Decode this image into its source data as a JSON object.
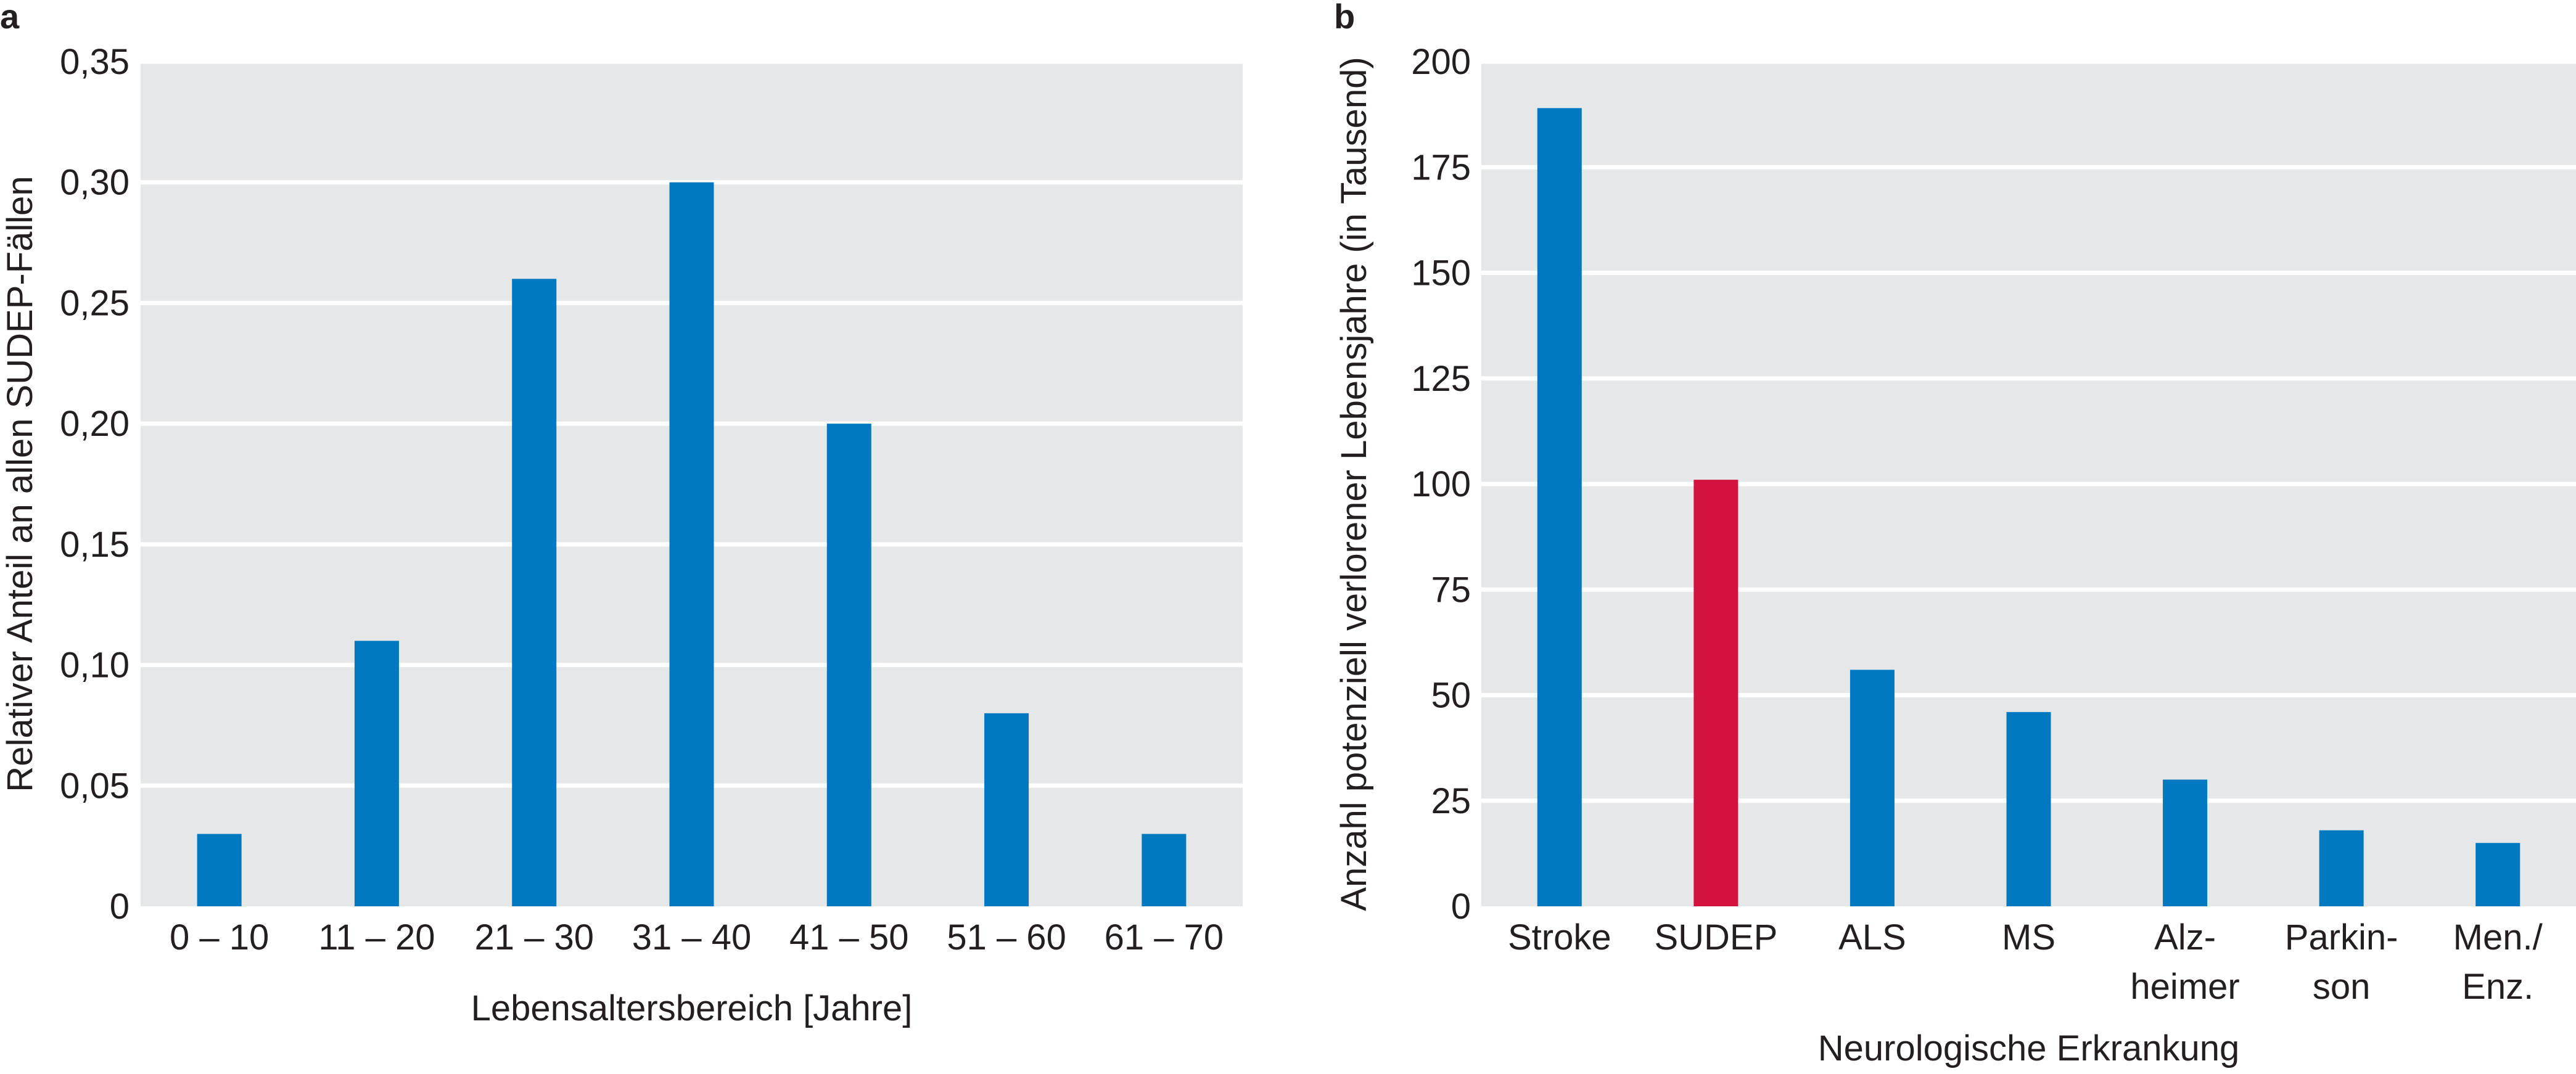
{
  "chart_data": [
    {
      "panel": "a",
      "type": "bar",
      "title": "",
      "xlabel": "Lebensaltersbereich [Jahre]",
      "ylabel": "Relativer Anteil an allen SUDEP-Fällen",
      "categories": [
        "0 – 10",
        "11 – 20",
        "21 – 30",
        "31 – 40",
        "41 – 50",
        "51 – 60",
        "61 – 70"
      ],
      "values": [
        0.03,
        0.11,
        0.26,
        0.3,
        0.2,
        0.08,
        0.03
      ],
      "ylim": [
        0,
        0.35
      ],
      "yticks": [
        0,
        0.05,
        0.1,
        0.15,
        0.2,
        0.25,
        0.3,
        0.35
      ],
      "ytick_labels": [
        "0",
        "0,05",
        "0,10",
        "0,15",
        "0,20",
        "0,25",
        "0,30",
        "0,35"
      ],
      "grid": true,
      "bar_colors": [
        "#0079c1",
        "#0079c1",
        "#0079c1",
        "#0079c1",
        "#0079c1",
        "#0079c1",
        "#0079c1"
      ]
    },
    {
      "panel": "b",
      "type": "bar",
      "title": "",
      "xlabel": "Neurologische Erkrankung",
      "ylabel": "Anzahl potenziell verlorener Lebensjahre (in Tausend)",
      "categories": [
        "Stroke",
        "SUDEP",
        "ALS",
        "MS",
        "Alz-\nheimer",
        "Parkin-\nson",
        "Men./\nEnz."
      ],
      "values": [
        189,
        101,
        56,
        46,
        30,
        18,
        15
      ],
      "ylim": [
        0,
        200
      ],
      "yticks": [
        0,
        25,
        50,
        75,
        100,
        125,
        150,
        175,
        200
      ],
      "ytick_labels": [
        "0",
        "25",
        "50",
        "75",
        "100",
        "125",
        "150",
        "175",
        "200"
      ],
      "grid": true,
      "bar_colors": [
        "#0079c1",
        "#d4123f",
        "#0079c1",
        "#0079c1",
        "#0079c1",
        "#0079c1",
        "#0079c1"
      ]
    }
  ],
  "colors": {
    "plot_background": "#e6e7e8",
    "gridline": "#ffffff",
    "bar_blue": "#0079c1",
    "bar_red": "#d4123f",
    "text": "#231f20"
  }
}
